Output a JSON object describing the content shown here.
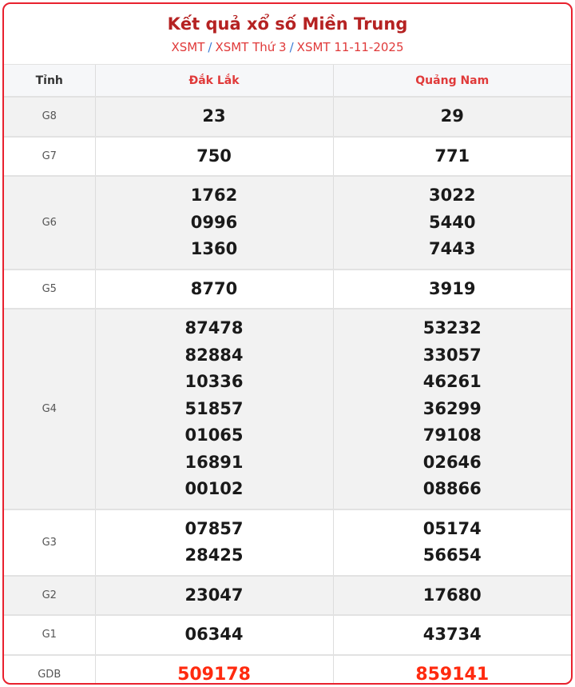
{
  "header": {
    "title": "Kết quả xổ số Miền Trung",
    "breadcrumb": [
      "XSMT",
      "XSMT Thứ 3",
      "XSMT 11-11-2025"
    ],
    "separator": "/"
  },
  "table": {
    "columns": [
      "Tỉnh",
      "Đắk Lắk",
      "Quảng Nam"
    ],
    "rows": [
      {
        "label": "G8",
        "a": [
          "23"
        ],
        "b": [
          "29"
        ]
      },
      {
        "label": "G7",
        "a": [
          "750"
        ],
        "b": [
          "771"
        ]
      },
      {
        "label": "G6",
        "a": [
          "1762",
          "0996",
          "1360"
        ],
        "b": [
          "3022",
          "5440",
          "7443"
        ]
      },
      {
        "label": "G5",
        "a": [
          "8770"
        ],
        "b": [
          "3919"
        ]
      },
      {
        "label": "G4",
        "a": [
          "87478",
          "82884",
          "10336",
          "51857",
          "01065",
          "16891",
          "00102"
        ],
        "b": [
          "53232",
          "33057",
          "46261",
          "36299",
          "79108",
          "02646",
          "08866"
        ]
      },
      {
        "label": "G3",
        "a": [
          "07857",
          "28425"
        ],
        "b": [
          "05174",
          "56654"
        ]
      },
      {
        "label": "G2",
        "a": [
          "23047"
        ],
        "b": [
          "17680"
        ]
      },
      {
        "label": "G1",
        "a": [
          "06344"
        ],
        "b": [
          "43734"
        ]
      },
      {
        "label": "GDB",
        "a": [
          "509178"
        ],
        "b": [
          "859141"
        ]
      }
    ]
  },
  "colors": {
    "border": "#e8212e",
    "title": "#b52222",
    "special_prize": "#ff2a0f",
    "link": "#e03a3a"
  }
}
